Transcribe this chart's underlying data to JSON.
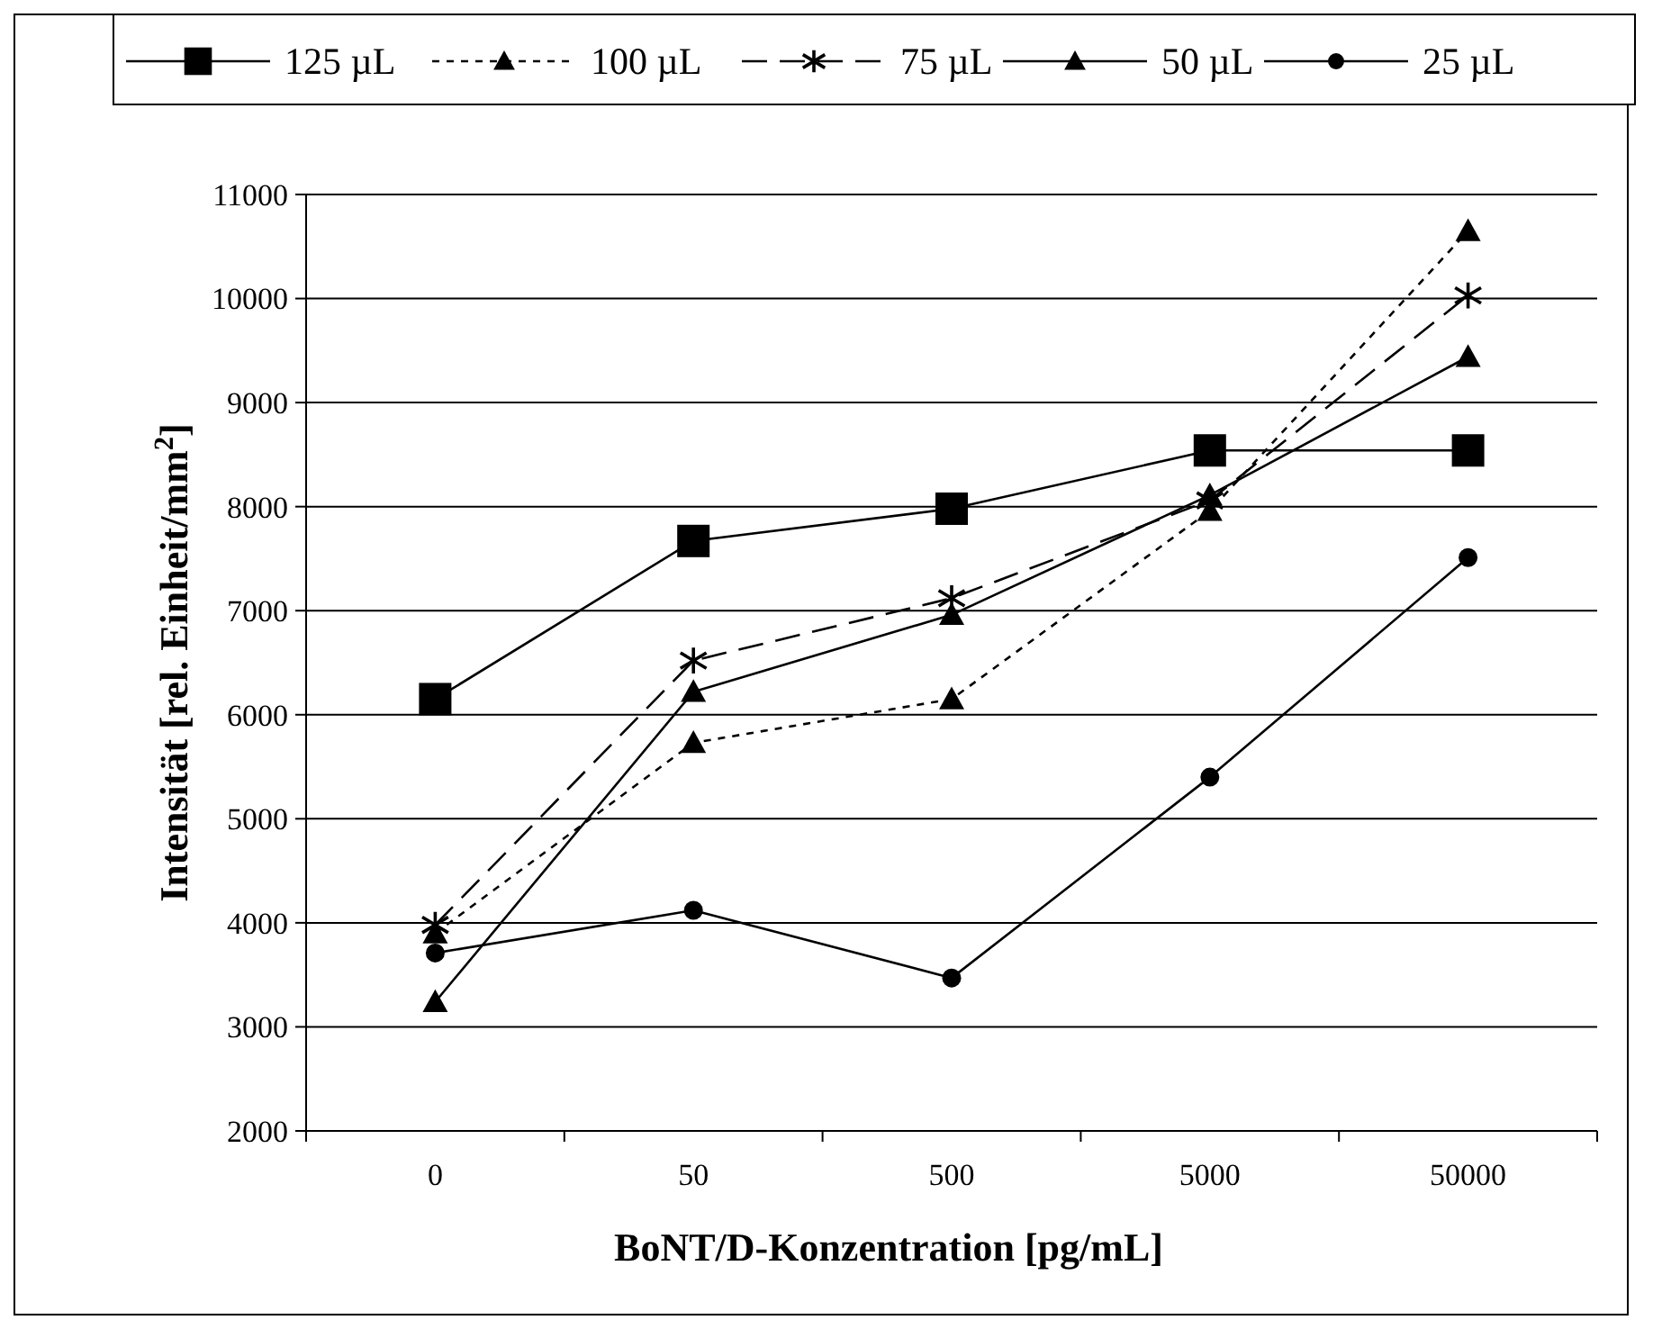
{
  "chart_data": {
    "type": "line",
    "xlabel": "BoNT/D-Konzentration [pg/mL]",
    "ylabel": "Intensität [rel. Einheit/mm$^{2}$]",
    "categories": [
      "0",
      "50",
      "500",
      "5000",
      "50000"
    ],
    "series": [
      {
        "name": "125 µL",
        "color": "#000000",
        "marker": "square",
        "line_style": "solid",
        "values": [
          6150,
          7670,
          7980,
          8540,
          8540
        ]
      },
      {
        "name": "100 µL",
        "color": "#000000",
        "marker": "triangle",
        "line_style": "dotted",
        "values": [
          3900,
          5730,
          6150,
          7960,
          10650
        ]
      },
      {
        "name": "75 µL",
        "color": "#000000",
        "marker": "cross",
        "line_style": "dashed",
        "values": [
          3980,
          6520,
          7120,
          8060,
          10030
        ]
      },
      {
        "name": "50 µL",
        "color": "#000000",
        "marker": "triangle",
        "line_style": "solid",
        "values": [
          3240,
          6220,
          6960,
          8110,
          9440
        ]
      },
      {
        "name": "25 µL",
        "color": "#000000",
        "marker": "circle",
        "line_style": "solid",
        "values": [
          3710,
          4120,
          3470,
          5400,
          7510
        ]
      }
    ],
    "ylim": [
      2000,
      11000
    ],
    "yticks": [
      2000,
      3000,
      4000,
      5000,
      6000,
      7000,
      8000,
      9000,
      10000,
      11000
    ],
    "grid": "y",
    "legend": "top"
  }
}
